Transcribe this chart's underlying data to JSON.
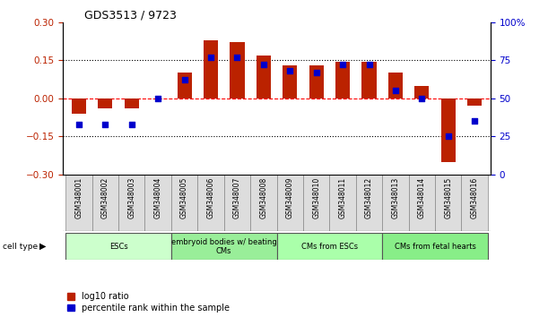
{
  "title": "GDS3513 / 9723",
  "samples": [
    "GSM348001",
    "GSM348002",
    "GSM348003",
    "GSM348004",
    "GSM348005",
    "GSM348006",
    "GSM348007",
    "GSM348008",
    "GSM348009",
    "GSM348010",
    "GSM348011",
    "GSM348012",
    "GSM348013",
    "GSM348014",
    "GSM348015",
    "GSM348016"
  ],
  "log10_ratio": [
    -0.06,
    -0.04,
    -0.04,
    0.0,
    0.1,
    0.23,
    0.22,
    0.17,
    0.13,
    0.13,
    0.145,
    0.145,
    0.1,
    0.05,
    -0.25,
    -0.03
  ],
  "percentile_rank": [
    33,
    33,
    33,
    50,
    62,
    77,
    77,
    72,
    68,
    67,
    72,
    72,
    55,
    50,
    25,
    35
  ],
  "bar_color": "#bb2200",
  "marker_color": "#0000cc",
  "cell_types": [
    {
      "label": "ESCs",
      "start": 0,
      "end": 4,
      "color": "#ccffcc"
    },
    {
      "label": "embryoid bodies w/ beating\nCMs",
      "start": 4,
      "end": 8,
      "color": "#99ee99"
    },
    {
      "label": "CMs from ESCs",
      "start": 8,
      "end": 12,
      "color": "#aaffaa"
    },
    {
      "label": "CMs from fetal hearts",
      "start": 12,
      "end": 16,
      "color": "#88ee88"
    }
  ],
  "ylim_left": [
    -0.3,
    0.3
  ],
  "ylim_right": [
    0,
    100
  ],
  "yticks_left": [
    -0.3,
    -0.15,
    0,
    0.15,
    0.3
  ],
  "yticks_right": [
    0,
    25,
    50,
    75,
    100
  ],
  "hlines_dotted": [
    -0.15,
    0.15
  ],
  "hline_dashed": 0,
  "legend_items": [
    {
      "label": "log10 ratio",
      "color": "#bb2200"
    },
    {
      "label": "percentile rank within the sample",
      "color": "#0000cc"
    }
  ],
  "bar_width": 0.55
}
